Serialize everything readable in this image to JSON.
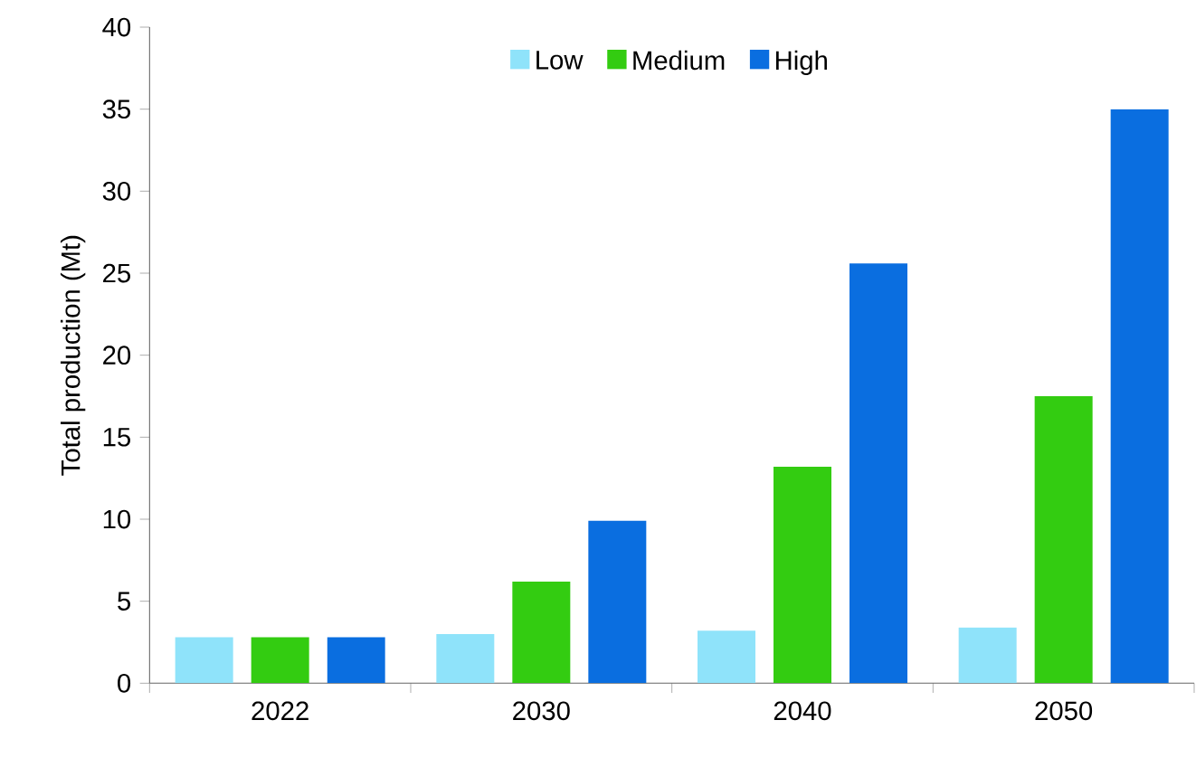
{
  "chart_data": {
    "type": "bar",
    "ylabel": "Total production (Mt)",
    "categories": [
      "2022",
      "2030",
      "2040",
      "2050"
    ],
    "ylim": [
      0,
      40
    ],
    "yticks": [
      0,
      5,
      10,
      15,
      20,
      25,
      30,
      35,
      40
    ],
    "legend": "top",
    "series": [
      {
        "name": "Low",
        "color": "#8fe3fa",
        "values": [
          2.8,
          3.0,
          3.2,
          3.4
        ]
      },
      {
        "name": "Medium",
        "color": "#33cc11",
        "values": [
          2.8,
          6.2,
          13.2,
          17.5
        ]
      },
      {
        "name": "High",
        "color": "#0a6ee0",
        "values": [
          2.8,
          9.9,
          25.6,
          35.0
        ]
      }
    ]
  }
}
